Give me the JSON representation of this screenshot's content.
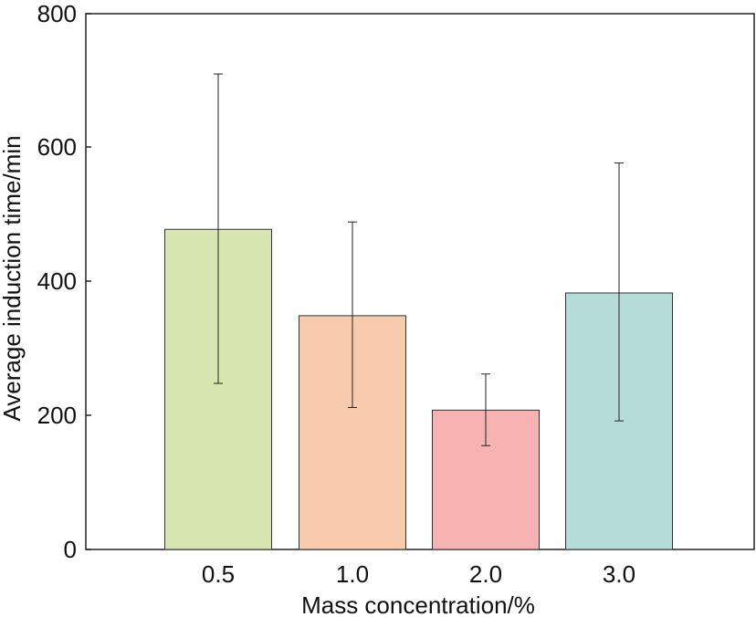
{
  "chart_data": {
    "type": "bar",
    "title": "",
    "xlabel": "Mass concentration/%",
    "ylabel": "Average induction time/min",
    "categories": [
      "0.5",
      "1.0",
      "2.0",
      "3.0"
    ],
    "values": [
      478,
      349,
      208,
      383
    ],
    "error_low": [
      248,
      212,
      155,
      192
    ],
    "error_high": [
      710,
      489,
      262,
      577
    ],
    "colors": [
      "#d7e6b0",
      "#f7cbab",
      "#f7b3b1",
      "#b6dcd9"
    ],
    "ylim": [
      0,
      800
    ],
    "yticks": [
      "0",
      "200",
      "400",
      "600",
      "800"
    ],
    "grid": false,
    "legend": "none"
  }
}
